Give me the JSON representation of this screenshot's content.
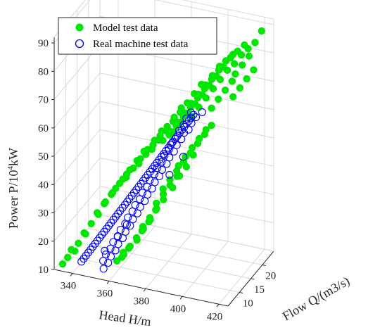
{
  "chart_data": {
    "type": "scatter3d",
    "axes": {
      "x": {
        "label": "Flow Q/(m3/s)",
        "ticks": [
          "10",
          "15",
          "20"
        ],
        "range": [
          5,
          25
        ]
      },
      "y": {
        "label": "Head H/m",
        "ticks": [
          "340",
          "360",
          "380",
          "400",
          "420"
        ],
        "range": [
          330,
          425
        ]
      },
      "z": {
        "label_prefix": "Power P/10",
        "label_sup": "4",
        "label_suffix": "kW",
        "ticks": [
          "10",
          "20",
          "30",
          "40",
          "50",
          "60",
          "70",
          "80",
          "90"
        ],
        "range": [
          10,
          92
        ]
      }
    },
    "grid": true,
    "legend": {
      "position": "top-left",
      "entries": [
        {
          "label": "Model test data",
          "marker": "filled-circle",
          "color": "#00e600"
        },
        {
          "label": "Real machine test data",
          "marker": "open-circle",
          "color": "#0000ff"
        }
      ]
    },
    "series": [
      {
        "name": "Model test data",
        "color": "#00e600",
        "points": [
          [
            20.5,
            424,
            92
          ],
          [
            20,
            421,
            88
          ],
          [
            19.4,
            418,
            86
          ],
          [
            18.8,
            415,
            84
          ],
          [
            18.2,
            412,
            81
          ],
          [
            17.5,
            409,
            79
          ],
          [
            16.8,
            406,
            76
          ],
          [
            16.1,
            403,
            73
          ],
          [
            15.4,
            400,
            70
          ],
          [
            14.7,
            397,
            67
          ],
          [
            14,
            394,
            64
          ],
          [
            19.4,
            416,
            87
          ],
          [
            18.8,
            413,
            85
          ],
          [
            18.1,
            410,
            83
          ],
          [
            17.4,
            407,
            80
          ],
          [
            16.7,
            404,
            77
          ],
          [
            16,
            401,
            74
          ],
          [
            15.3,
            398,
            71
          ],
          [
            14.6,
            395,
            68
          ],
          [
            13.9,
            392,
            65
          ],
          [
            13.2,
            389,
            62
          ],
          [
            12.5,
            386,
            59
          ],
          [
            18.4,
            411,
            84
          ],
          [
            17.7,
            408,
            82
          ],
          [
            17,
            405,
            79
          ],
          [
            16.3,
            402,
            76
          ],
          [
            15.6,
            399,
            73
          ],
          [
            14.9,
            396,
            70
          ],
          [
            14.2,
            393,
            67
          ],
          [
            13.5,
            390,
            64
          ],
          [
            12.8,
            387,
            61
          ],
          [
            12.1,
            384,
            58
          ],
          [
            17.3,
            405,
            80
          ],
          [
            16.6,
            402,
            77
          ],
          [
            15.9,
            399,
            74
          ],
          [
            15.2,
            396,
            71
          ],
          [
            14.5,
            393,
            68
          ],
          [
            13.8,
            390,
            65
          ],
          [
            13.1,
            387,
            62
          ],
          [
            12.4,
            384,
            59
          ],
          [
            11.7,
            381,
            56
          ],
          [
            15.8,
            397,
            74
          ],
          [
            15.1,
            394,
            71
          ],
          [
            14.4,
            391,
            68
          ],
          [
            13.7,
            388,
            65
          ],
          [
            13,
            385,
            62
          ],
          [
            12.3,
            382,
            59
          ],
          [
            11.6,
            379,
            56
          ],
          [
            10.9,
            376,
            53
          ],
          [
            14.2,
            388,
            66
          ],
          [
            13.5,
            385,
            63
          ],
          [
            12.8,
            382,
            60
          ],
          [
            12.1,
            379,
            57
          ],
          [
            11.4,
            376,
            54
          ],
          [
            10.7,
            373,
            51
          ],
          [
            10,
            370,
            48
          ],
          [
            12.8,
            379,
            58
          ],
          [
            12.1,
            376,
            55
          ],
          [
            11.4,
            373,
            52
          ],
          [
            10.7,
            370,
            49
          ],
          [
            10,
            367,
            46
          ],
          [
            9.3,
            364,
            43
          ],
          [
            11.5,
            371,
            51
          ],
          [
            10.8,
            368,
            48
          ],
          [
            10.1,
            365,
            45
          ],
          [
            9.4,
            362,
            42
          ],
          [
            8.7,
            359,
            39
          ],
          [
            10.3,
            363,
            43
          ],
          [
            9.6,
            360,
            40
          ],
          [
            8.9,
            357,
            37
          ],
          [
            8.2,
            354,
            34
          ],
          [
            9.2,
            356,
            36
          ],
          [
            8.5,
            353,
            33
          ],
          [
            7.8,
            350,
            30
          ],
          [
            8.3,
            350,
            29
          ],
          [
            7.6,
            347,
            26
          ],
          [
            6.9,
            344,
            23
          ],
          [
            7.5,
            344,
            22
          ],
          [
            6.8,
            341,
            19
          ],
          [
            6.1,
            338,
            17
          ],
          [
            6.8,
            339,
            16
          ],
          [
            6.1,
            336,
            14
          ],
          [
            5.5,
            334,
            12
          ],
          [
            17,
            398,
            57
          ],
          [
            16.4,
            395,
            54
          ],
          [
            15.8,
            392,
            51
          ],
          [
            15.2,
            389,
            48
          ],
          [
            14.6,
            386,
            45
          ],
          [
            15.8,
            391,
            49
          ],
          [
            15.2,
            388,
            46
          ],
          [
            14.6,
            385,
            43
          ],
          [
            14,
            382,
            40
          ],
          [
            13.4,
            379,
            37
          ],
          [
            14.7,
            385,
            41
          ],
          [
            14.1,
            382,
            38
          ],
          [
            13.5,
            379,
            35
          ],
          [
            12.9,
            376,
            32
          ],
          [
            13.6,
            379,
            33
          ],
          [
            13,
            376,
            30
          ],
          [
            12.4,
            373,
            27
          ],
          [
            11.8,
            370,
            24
          ],
          [
            12.6,
            373,
            26
          ],
          [
            12,
            370,
            23
          ],
          [
            11.4,
            367,
            20
          ],
          [
            11.6,
            367,
            19
          ],
          [
            11,
            364,
            17
          ],
          [
            10.4,
            361,
            15
          ],
          [
            10.6,
            361,
            14
          ],
          [
            10,
            358,
            12
          ],
          [
            18.8,
            410,
            74
          ],
          [
            18.2,
            407,
            71
          ],
          [
            17.6,
            404,
            68
          ],
          [
            17,
            401,
            65
          ],
          [
            19.8,
            418,
            83
          ],
          [
            19.2,
            415,
            80
          ],
          [
            18.6,
            412,
            77
          ],
          [
            16.2,
            392,
            48
          ],
          [
            15.6,
            389,
            44
          ],
          [
            15,
            386,
            41
          ],
          [
            14.4,
            383,
            37
          ],
          [
            13.4,
            375,
            29
          ],
          [
            12.8,
            372,
            25
          ],
          [
            12.2,
            369,
            22
          ],
          [
            11.2,
            363,
            16
          ],
          [
            10.6,
            360,
            13
          ],
          [
            20.2,
            420,
            78
          ],
          [
            19.6,
            417,
            75
          ],
          [
            19,
            414,
            72
          ],
          [
            18.4,
            411,
            69
          ],
          [
            17.8,
            400,
            58
          ],
          [
            17.2,
            397,
            55
          ],
          [
            16.6,
            394,
            52
          ]
        ]
      },
      {
        "name": "Real machine test data",
        "color": "#0000ff",
        "points": [
          [
            15.5,
            393,
            63
          ],
          [
            15.3,
            392,
            62
          ],
          [
            15.1,
            391,
            61
          ],
          [
            14.9,
            390,
            60
          ],
          [
            14.7,
            389,
            59
          ],
          [
            14.5,
            388,
            58
          ],
          [
            14.3,
            387,
            57
          ],
          [
            14.1,
            386,
            56
          ],
          [
            13.9,
            385,
            55
          ],
          [
            13.7,
            384,
            54
          ],
          [
            13.5,
            383,
            53
          ],
          [
            13.3,
            382,
            52
          ],
          [
            13.1,
            381,
            51
          ],
          [
            12.9,
            380,
            50
          ],
          [
            12.7,
            379,
            49
          ],
          [
            12.5,
            378,
            48
          ],
          [
            12.3,
            377,
            47
          ],
          [
            12.1,
            376,
            46
          ],
          [
            11.9,
            375,
            45
          ],
          [
            11.7,
            374,
            44
          ],
          [
            11.5,
            373,
            43
          ],
          [
            11.3,
            372,
            42
          ],
          [
            11.1,
            371,
            41
          ],
          [
            10.9,
            370,
            40
          ],
          [
            10.7,
            369,
            39
          ],
          [
            10.5,
            368,
            38
          ],
          [
            10.3,
            367,
            37
          ],
          [
            10.1,
            366,
            36
          ],
          [
            9.9,
            365,
            35
          ],
          [
            9.7,
            364,
            34
          ],
          [
            9.5,
            363,
            33
          ],
          [
            9.3,
            362,
            32
          ],
          [
            9.1,
            361,
            31
          ],
          [
            8.9,
            360,
            30
          ],
          [
            8.7,
            359,
            29
          ],
          [
            8.5,
            358,
            28
          ],
          [
            8.3,
            357,
            27
          ],
          [
            8.1,
            356,
            26
          ],
          [
            7.9,
            355,
            25
          ],
          [
            7.7,
            354,
            24
          ],
          [
            7.5,
            353,
            23
          ],
          [
            7.3,
            352,
            22
          ],
          [
            7.1,
            351,
            21
          ],
          [
            6.9,
            350,
            20
          ],
          [
            6.7,
            349,
            19
          ],
          [
            6.5,
            348,
            18
          ],
          [
            6.3,
            347,
            17
          ],
          [
            6.1,
            346,
            16
          ],
          [
            5.9,
            345,
            15
          ],
          [
            5.7,
            344,
            14
          ],
          [
            15.8,
            394,
            62
          ],
          [
            15.4,
            392,
            60
          ],
          [
            15,
            391,
            58
          ],
          [
            14.6,
            389,
            57
          ],
          [
            14.2,
            388,
            55
          ],
          [
            13.8,
            386,
            53
          ],
          [
            13.4,
            385,
            51
          ],
          [
            13,
            383,
            49
          ],
          [
            12.6,
            382,
            47
          ],
          [
            12.2,
            380,
            45
          ],
          [
            11.8,
            379,
            43
          ],
          [
            11.4,
            377,
            41
          ],
          [
            11,
            376,
            39
          ],
          [
            10.6,
            374,
            37
          ],
          [
            10.2,
            373,
            35
          ],
          [
            9.8,
            371,
            33
          ],
          [
            9.4,
            370,
            31
          ],
          [
            9,
            368,
            29
          ],
          [
            8.6,
            367,
            27
          ],
          [
            8.2,
            365,
            25
          ],
          [
            7.8,
            364,
            23
          ],
          [
            7.4,
            362,
            21
          ],
          [
            7,
            361,
            19
          ],
          [
            6.6,
            359,
            17
          ],
          [
            6.2,
            358,
            15
          ],
          [
            5.8,
            356,
            13
          ],
          [
            15.2,
            392,
            64
          ],
          [
            14.8,
            390,
            62
          ],
          [
            14.4,
            389,
            60
          ],
          [
            14,
            387,
            58
          ],
          [
            13.6,
            386,
            56
          ],
          [
            13.2,
            384,
            54
          ],
          [
            12.8,
            383,
            52
          ],
          [
            12.4,
            381,
            50
          ],
          [
            12,
            380,
            48
          ],
          [
            11.6,
            378,
            46
          ],
          [
            11.2,
            377,
            44
          ],
          [
            10.8,
            375,
            42
          ],
          [
            10.4,
            374,
            40
          ],
          [
            10,
            372,
            38
          ],
          [
            9.6,
            371,
            36
          ],
          [
            9.2,
            369,
            34
          ],
          [
            8.8,
            368,
            32
          ],
          [
            8.4,
            366,
            30
          ],
          [
            8,
            365,
            28
          ],
          [
            7.6,
            363,
            26
          ],
          [
            7.2,
            362,
            24
          ],
          [
            6.8,
            360,
            22
          ],
          [
            6.4,
            359,
            20
          ],
          [
            6,
            357,
            18
          ],
          [
            5.6,
            356,
            16
          ],
          [
            16.9,
            396,
            63
          ],
          [
            15,
            388,
            48
          ],
          [
            13.8,
            382,
            42
          ],
          [
            9.6,
            364,
            26
          ],
          [
            8.8,
            360,
            22
          ],
          [
            7.1,
            355,
            18
          ]
        ]
      }
    ]
  }
}
